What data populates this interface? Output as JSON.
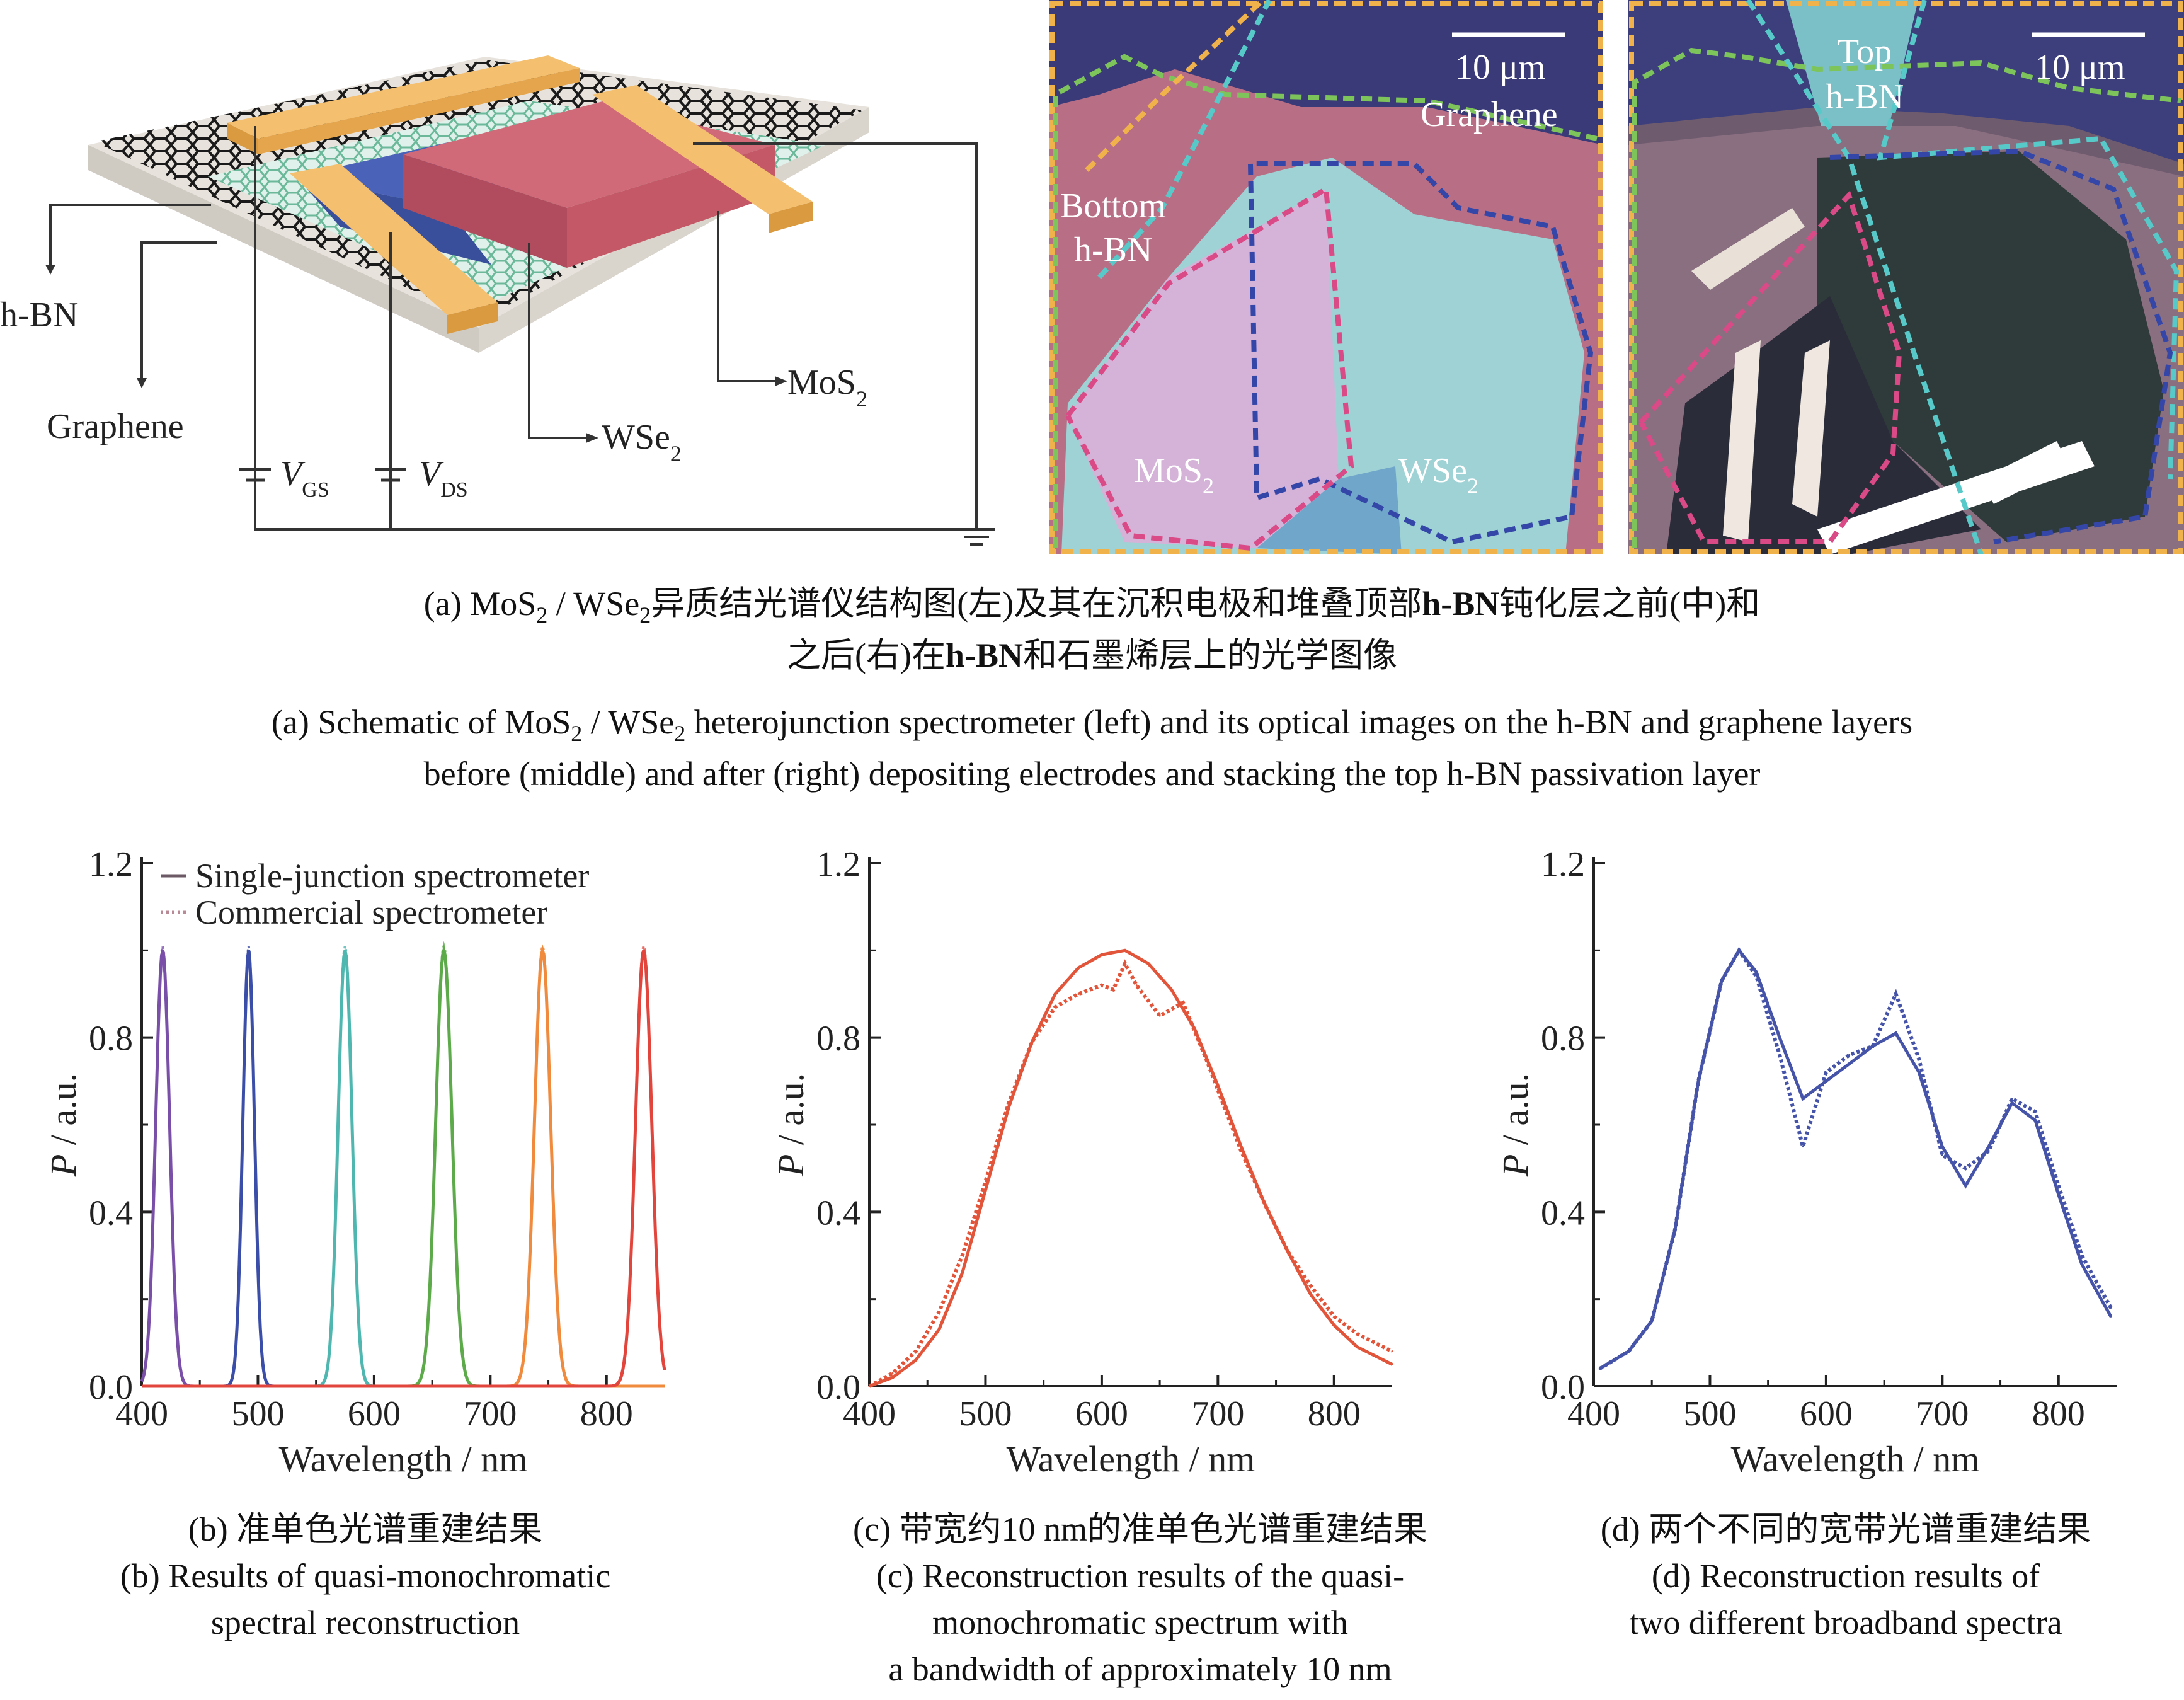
{
  "panel_a": {
    "schematic": {
      "labels": {
        "hbn": "h-BN",
        "graphene": "Graphene",
        "wse2": "WSe",
        "wse2_sub": "2",
        "mos2": "MoS",
        "mos2_sub": "2",
        "vgs": "V",
        "vgs_sub": "GS",
        "vds": "V",
        "vds_sub": "DS"
      },
      "colors": {
        "electrode": "#f0b35a",
        "mos2": "#c35a6a",
        "wse2": "#4a62b8",
        "substrate": "#e7e3dc"
      }
    },
    "image_middle": {
      "scale": "10 μm",
      "graphene": "Graphene",
      "bottom_hbn_1": "Bottom",
      "bottom_hbn_2": "h-BN",
      "mos2": "MoS",
      "mos2_sub": "2",
      "wse2": "WSe",
      "wse2_sub": "2"
    },
    "image_right": {
      "scale": "10 μm",
      "top_hbn_1": "Top",
      "top_hbn_2": "h-BN"
    },
    "caption_cn_line1_a": "(a) MoS",
    "caption_cn_line1_sub1": "2",
    "caption_cn_line1_b": " / WSe",
    "caption_cn_line1_sub2": "2",
    "caption_cn_line1_c": "异质结光谱仪结构图(左)及其在沉积电极和堆叠顶部",
    "caption_cn_line1_bold": "h-BN",
    "caption_cn_line1_d": "钝化层之前(中)和",
    "caption_cn_line2_a": "之后(右)在",
    "caption_cn_line2_bold": "h-BN",
    "caption_cn_line2_b": "和石墨烯层上的光学图像",
    "caption_en_line1_a": "(a) Schematic of MoS",
    "caption_en_line1_sub1": "2",
    "caption_en_line1_b": " / WSe",
    "caption_en_line1_sub2": "2",
    "caption_en_line1_c": " heterojunction spectrometer (left) and its optical images on the h-BN and graphene layers",
    "caption_en_line2": "before (middle) and after (right) depositing electrodes and stacking the top h-BN passivation layer"
  },
  "panel_b": {
    "caption_cn": "(b) 准单色光谱重建结果",
    "caption_en_1": "(b) Results of quasi-monochromatic",
    "caption_en_2": "spectral reconstruction"
  },
  "panel_c": {
    "caption_cn": "(c) 带宽约10 nm的准单色光谱重建结果",
    "caption_en_1": "(c) Reconstruction results of the quasi-",
    "caption_en_2": "monochromatic spectrum with",
    "caption_en_3": "a bandwidth of approximately 10 nm"
  },
  "panel_d": {
    "caption_cn": "(d) 两个不同的宽带光谱重建结果",
    "caption_en_1": "(d) Reconstruction results of",
    "caption_en_2": "two different broadband spectra"
  },
  "chart_data": [
    {
      "type": "line",
      "panel": "b",
      "xlabel": "Wavelength / nm",
      "ylabel_italic": "P",
      "ylabel_rest": " / a.u.",
      "xlim": [
        400,
        850
      ],
      "ylim": [
        0,
        1.2
      ],
      "xticks": [
        "400",
        "500",
        "600",
        "700",
        "800"
      ],
      "yticks": [
        "0.0",
        "0.4",
        "0.8",
        "1.2"
      ],
      "legend": [
        "Single-junction spectrometer",
        "Commercial spectrometer"
      ],
      "legend_position": "top",
      "peaks": [
        {
          "center": 418,
          "width": 6,
          "color": "#7a4fa8"
        },
        {
          "center": 492,
          "width": 5,
          "color": "#3b4ea8"
        },
        {
          "center": 575,
          "width": 6,
          "color": "#4fb7b0"
        },
        {
          "center": 660,
          "width": 7,
          "color": "#5caa4a"
        },
        {
          "center": 745,
          "width": 7,
          "color": "#f08a3c"
        },
        {
          "center": 832,
          "width": 7,
          "color": "#e2453c"
        }
      ],
      "peak_height": 1.0,
      "series": [
        {
          "name": "Single-junction spectrometer",
          "style": "solid"
        },
        {
          "name": "Commercial spectrometer",
          "style": "dotted"
        }
      ]
    },
    {
      "type": "line",
      "panel": "c",
      "xlabel": "Wavelength / nm",
      "ylabel_italic": "P",
      "ylabel_rest": " / a.u.",
      "xlim": [
        400,
        850
      ],
      "ylim": [
        0,
        1.2
      ],
      "xticks": [
        "400",
        "500",
        "600",
        "700",
        "800"
      ],
      "yticks": [
        "0.0",
        "0.4",
        "0.8",
        "1.2"
      ],
      "color": "#e2553a",
      "series": [
        {
          "style": "solid",
          "x": [
            400,
            420,
            440,
            460,
            480,
            500,
            520,
            540,
            560,
            580,
            600,
            620,
            640,
            660,
            680,
            700,
            720,
            740,
            760,
            780,
            800,
            820,
            850
          ],
          "y": [
            0.0,
            0.02,
            0.06,
            0.13,
            0.26,
            0.45,
            0.64,
            0.79,
            0.9,
            0.96,
            0.99,
            1.0,
            0.97,
            0.91,
            0.82,
            0.69,
            0.55,
            0.42,
            0.31,
            0.21,
            0.14,
            0.09,
            0.05
          ]
        },
        {
          "style": "dotted",
          "x": [
            400,
            420,
            440,
            460,
            480,
            500,
            520,
            540,
            560,
            580,
            600,
            610,
            620,
            630,
            650,
            670,
            690,
            700,
            720,
            740,
            760,
            780,
            800,
            820,
            850
          ],
          "y": [
            0.0,
            0.03,
            0.08,
            0.17,
            0.3,
            0.47,
            0.65,
            0.79,
            0.87,
            0.9,
            0.92,
            0.91,
            0.97,
            0.92,
            0.85,
            0.88,
            0.75,
            0.68,
            0.54,
            0.42,
            0.31,
            0.23,
            0.16,
            0.12,
            0.08
          ]
        }
      ]
    },
    {
      "type": "line",
      "panel": "d",
      "xlabel": "Wavelength / nm",
      "ylabel_italic": "P",
      "ylabel_rest": " / a.u.",
      "xlim": [
        400,
        850
      ],
      "ylim": [
        0,
        1.2
      ],
      "xticks": [
        "400",
        "500",
        "600",
        "700",
        "800"
      ],
      "yticks": [
        "0.0",
        "0.4",
        "0.8",
        "1.2"
      ],
      "color": "#4553a8",
      "series": [
        {
          "style": "solid",
          "x": [
            405,
            430,
            450,
            470,
            490,
            510,
            525,
            540,
            560,
            580,
            600,
            620,
            640,
            660,
            680,
            700,
            720,
            740,
            760,
            780,
            800,
            820,
            845
          ],
          "y": [
            0.04,
            0.08,
            0.15,
            0.36,
            0.7,
            0.93,
            1.0,
            0.95,
            0.8,
            0.66,
            0.7,
            0.74,
            0.78,
            0.81,
            0.72,
            0.55,
            0.46,
            0.55,
            0.65,
            0.61,
            0.44,
            0.28,
            0.16
          ]
        },
        {
          "style": "dotted",
          "x": [
            405,
            430,
            450,
            470,
            490,
            510,
            525,
            540,
            560,
            580,
            600,
            620,
            640,
            660,
            680,
            700,
            720,
            740,
            760,
            780,
            800,
            820,
            845
          ],
          "y": [
            0.04,
            0.08,
            0.15,
            0.36,
            0.7,
            0.93,
            1.0,
            0.94,
            0.76,
            0.55,
            0.72,
            0.76,
            0.78,
            0.9,
            0.75,
            0.53,
            0.5,
            0.54,
            0.66,
            0.63,
            0.46,
            0.3,
            0.18
          ]
        }
      ]
    }
  ]
}
